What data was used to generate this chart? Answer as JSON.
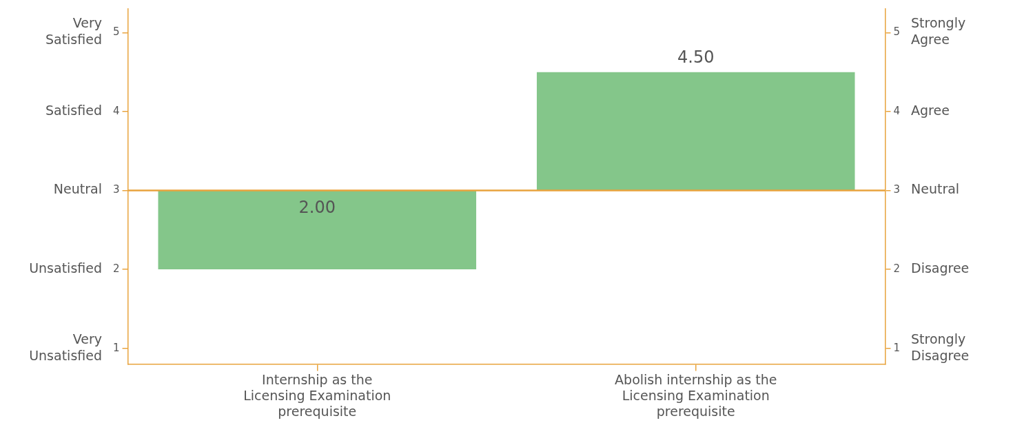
{
  "chart_data": {
    "type": "bar",
    "categories": [
      "Internship as the Licensing Examination prerequisite",
      "Abolish internship as the Licensing Examination prerequisite"
    ],
    "values": [
      -1,
      1.5
    ],
    "base": [
      3,
      3
    ],
    "value_labels": [
      "2.00",
      "4.50"
    ],
    "color": "#84c68a",
    "ylim": [
      0.8,
      5.3
    ],
    "yticks": [
      1,
      2,
      3,
      4,
      5
    ],
    "y2lim": [
      0.8,
      5.3
    ],
    "y2ticks": [
      1,
      2,
      3,
      4,
      5
    ],
    "annotations": [
      "Very Unsatisfied",
      "Unsatisfied",
      "Neutral",
      "Satisfied",
      "Very Satisfied",
      "Strongly Disagree",
      "Disagree",
      "Neutral",
      "Agree",
      "Strongly Agree"
    ],
    "ref_lines": [
      {
        "axis": "y",
        "value": 3,
        "color": "#e8a33d"
      }
    ],
    "grid": false,
    "legend": false
  }
}
